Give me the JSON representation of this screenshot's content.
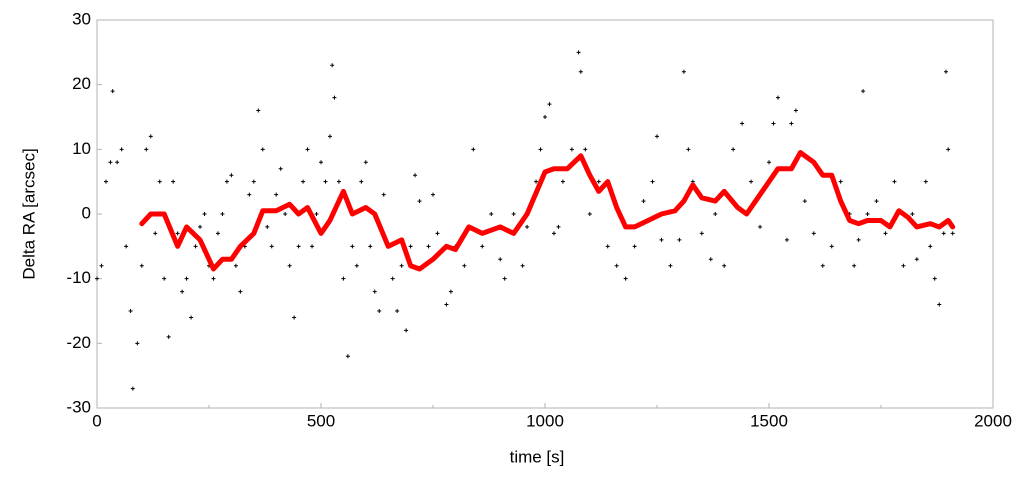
{
  "chart_data": {
    "type": "scatter",
    "xlabel": "time [s]",
    "ylabel": "Delta RA [arcsec]",
    "xlim": [
      0,
      2000
    ],
    "xticks": [
      0,
      500,
      1000,
      1500,
      2000
    ],
    "xminorticks": [
      250,
      750,
      1250,
      1750
    ],
    "ylim": [
      -30,
      30
    ],
    "yticks": [
      -30,
      -20,
      -10,
      0,
      10,
      20,
      30
    ],
    "grid": false,
    "series": [
      {
        "type": "scatter",
        "color": "#000000",
        "x": [
          0,
          10,
          20,
          30,
          35,
          45,
          55,
          65,
          75,
          80,
          90,
          100,
          110,
          120,
          130,
          140,
          150,
          160,
          170,
          180,
          190,
          200,
          210,
          220,
          230,
          240,
          250,
          260,
          270,
          280,
          290,
          300,
          310,
          320,
          330,
          340,
          350,
          360,
          370,
          380,
          390,
          400,
          410,
          420,
          430,
          440,
          450,
          460,
          470,
          480,
          490,
          500,
          510,
          520,
          525,
          530,
          540,
          550,
          560,
          570,
          580,
          590,
          600,
          610,
          620,
          630,
          640,
          650,
          660,
          670,
          680,
          690,
          700,
          710,
          720,
          730,
          740,
          750,
          760,
          780,
          790,
          800,
          820,
          840,
          860,
          880,
          900,
          910,
          930,
          950,
          960,
          980,
          990,
          1000,
          1010,
          1020,
          1030,
          1040,
          1060,
          1075,
          1080,
          1090,
          1100,
          1120,
          1140,
          1160,
          1180,
          1200,
          1220,
          1240,
          1250,
          1260,
          1280,
          1300,
          1310,
          1320,
          1330,
          1350,
          1370,
          1380,
          1400,
          1420,
          1440,
          1460,
          1480,
          1500,
          1510,
          1520,
          1540,
          1550,
          1560,
          1580,
          1600,
          1620,
          1640,
          1660,
          1680,
          1690,
          1700,
          1710,
          1720,
          1740,
          1760,
          1780,
          1800,
          1820,
          1830,
          1850,
          1860,
          1870,
          1880,
          1890,
          1895,
          1900,
          1910
        ],
        "values": [
          -10,
          -8,
          5,
          8,
          19,
          8,
          10,
          -5,
          -15,
          -27,
          -20,
          -8,
          10,
          12,
          -3,
          5,
          -10,
          -19,
          5,
          -3,
          -12,
          -10,
          -16,
          -5,
          -2,
          0,
          -8,
          -10,
          -3,
          0,
          5,
          6,
          -8,
          -12,
          -5,
          3,
          5,
          16,
          10,
          -2,
          -5,
          3,
          7,
          0,
          -8,
          -16,
          -5,
          5,
          10,
          -5,
          0,
          8,
          5,
          12,
          23,
          18,
          5,
          -10,
          -22,
          -5,
          -8,
          5,
          8,
          -5,
          -12,
          -15,
          3,
          -5,
          -10,
          -15,
          -8,
          -18,
          -5,
          6,
          2,
          -8,
          -5,
          3,
          -3,
          -14,
          -12,
          -5,
          -8,
          10,
          -5,
          0,
          -7,
          -10,
          0,
          -8,
          -2,
          5,
          10,
          15,
          17,
          -3,
          -2,
          5,
          10,
          25,
          22,
          10,
          0,
          5,
          -5,
          -8,
          -10,
          -5,
          2,
          5,
          12,
          -4,
          -8,
          -4,
          22,
          10,
          5,
          -3,
          -7,
          0,
          -8,
          10,
          14,
          5,
          -2,
          8,
          14,
          18,
          -4,
          14,
          16,
          2,
          -3,
          -8,
          -5,
          5,
          0,
          -8,
          -4,
          19,
          0,
          2,
          -3,
          5,
          -8,
          0,
          -7,
          5,
          -5,
          -10,
          -14,
          -3,
          22,
          10,
          -3
        ]
      },
      {
        "type": "line",
        "color": "#ff0000",
        "x": [
          100,
          120,
          150,
          180,
          200,
          230,
          260,
          280,
          300,
          320,
          350,
          370,
          400,
          430,
          450,
          470,
          500,
          520,
          550,
          570,
          600,
          620,
          650,
          680,
          700,
          720,
          750,
          780,
          800,
          830,
          860,
          900,
          930,
          960,
          1000,
          1020,
          1050,
          1080,
          1100,
          1120,
          1140,
          1160,
          1180,
          1200,
          1230,
          1260,
          1290,
          1310,
          1330,
          1350,
          1380,
          1400,
          1430,
          1450,
          1470,
          1500,
          1520,
          1550,
          1570,
          1600,
          1620,
          1640,
          1660,
          1680,
          1700,
          1720,
          1750,
          1770,
          1790,
          1810,
          1830,
          1860,
          1880,
          1900,
          1910
        ],
        "values": [
          -1.5,
          0,
          0,
          -5,
          -2,
          -4,
          -8.5,
          -7,
          -7,
          -5,
          -3,
          0.5,
          0.5,
          1.5,
          0,
          1,
          -3,
          -1,
          3.5,
          0,
          1,
          0,
          -5,
          -4,
          -8,
          -8.5,
          -7,
          -5,
          -5.5,
          -2,
          -3,
          -2,
          -3,
          0,
          6.5,
          7,
          7,
          9,
          6,
          3.5,
          5,
          1,
          -2,
          -2,
          -1,
          0,
          0.5,
          2,
          4.5,
          2.5,
          2,
          3.5,
          1,
          0,
          2,
          5,
          7,
          7,
          9.5,
          8,
          6,
          6,
          2,
          -1,
          -1.5,
          -1,
          -1,
          -2,
          0.5,
          -0.5,
          -2,
          -1.5,
          -2,
          -1,
          -2
        ]
      }
    ]
  }
}
